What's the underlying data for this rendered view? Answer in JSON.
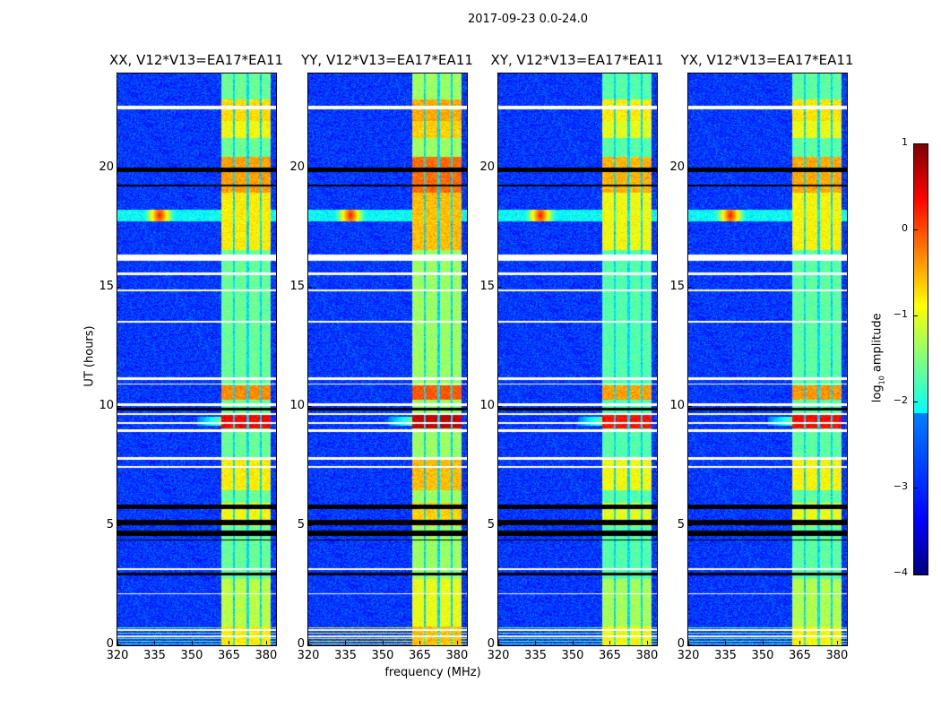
{
  "chart_data": {
    "type": "heatmap",
    "title": "2017-09-23 0.0-24.0",
    "xlabel": "frequency (MHz)",
    "ylabel": "UT (hours)",
    "xlim": [
      320,
      384
    ],
    "ylim": [
      0,
      24
    ],
    "xticks": [
      320,
      335,
      350,
      365,
      380
    ],
    "yticks": [
      0,
      5,
      10,
      15,
      20
    ],
    "panels": [
      {
        "title": "XX, V12*V13=EA17*EA11",
        "band_boost": 0
      },
      {
        "title": "YY, V12*V13=EA17*EA11",
        "band_boost": 0.25
      },
      {
        "title": "XY, V12*V13=EA17*EA11",
        "band_boost": -0.1
      },
      {
        "title": "YX, V12*V13=EA17*EA11",
        "band_boost": -0.05
      }
    ],
    "features": {
      "background_level": -3.1,
      "rfi_band_mhz": [
        362,
        382
      ],
      "band_gaps_mhz": [
        [
          366.5,
          367.3
        ],
        [
          372,
          373
        ],
        [
          377.5,
          378.3
        ]
      ],
      "band_level_default": -1.6,
      "band_segments": [
        {
          "hours": [
            22.0,
            22.9
          ],
          "level": -0.7
        },
        {
          "hours": [
            21.3,
            22.0
          ],
          "level": -0.9
        },
        {
          "hours": [
            19.0,
            20.5
          ],
          "level": -0.4
        },
        {
          "hours": [
            16.6,
            19.0
          ],
          "level": -0.8
        },
        {
          "hours": [
            10.3,
            10.9
          ],
          "level": -0.3
        },
        {
          "hours": [
            9.1,
            9.7
          ],
          "level": 0.4
        },
        {
          "hours": [
            6.5,
            7.8
          ],
          "level": -0.8
        },
        {
          "hours": [
            5.0,
            6.0
          ],
          "level": -0.9
        },
        {
          "hours": [
            0.8,
            2.8
          ],
          "level": -1.2
        },
        {
          "hours": [
            0.0,
            0.8
          ],
          "level": -0.8
        }
      ],
      "rfi_line_hours": [
        17.8,
        18.3
      ],
      "rfi_spike_mhz": 337,
      "flagged_hours": [
        [
          22.5,
          22.65
        ],
        [
          16.15,
          16.4
        ],
        [
          15.55,
          15.65
        ],
        [
          14.85,
          14.95
        ],
        [
          13.55,
          13.6
        ],
        [
          11.15,
          11.25
        ],
        [
          10.95,
          11.0
        ],
        [
          10.05,
          10.15
        ],
        [
          9.65,
          9.75
        ],
        [
          9.3,
          9.38
        ],
        [
          8.95,
          9.05
        ],
        [
          7.8,
          7.9
        ],
        [
          7.45,
          7.52
        ],
        [
          3.15,
          3.22
        ],
        [
          2.15,
          2.2
        ],
        [
          0.6,
          0.68
        ],
        [
          0.35,
          0.42
        ]
      ],
      "no_data_hours": [
        [
          19.85,
          20.05
        ],
        [
          19.25,
          19.32
        ],
        [
          9.85,
          9.95
        ],
        [
          5.7,
          5.9
        ],
        [
          5.05,
          5.25
        ],
        [
          4.6,
          4.8
        ],
        [
          4.4,
          4.45
        ],
        [
          2.95,
          3.05
        ]
      ]
    },
    "colorbar": {
      "label_main": "log",
      "label_sub": "10",
      "label_rest": " amplitude",
      "range": [
        -4,
        1
      ],
      "ticks": [
        "1",
        "0",
        "−1",
        "−2",
        "−3",
        "−4"
      ],
      "colormap": "jet"
    }
  }
}
